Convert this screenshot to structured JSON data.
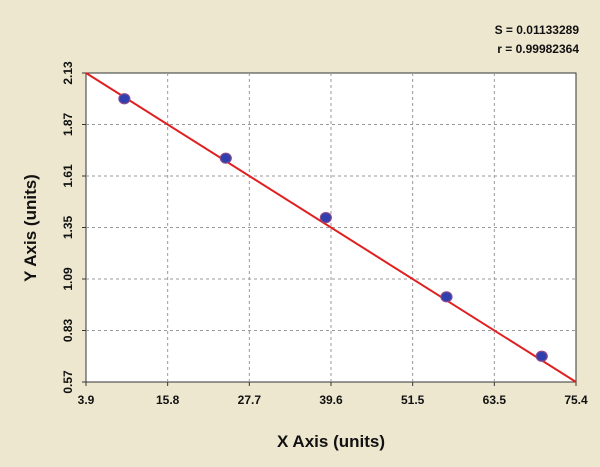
{
  "chart_data": {
    "type": "scatter",
    "title": "",
    "xlabel": "X Axis (units)",
    "ylabel": "Y Axis (units)",
    "xlim": [
      3.9,
      75.4
    ],
    "ylim": [
      0.57,
      2.13
    ],
    "x_ticks": [
      "3.9",
      "15.8",
      "27.7",
      "39.6",
      "51.5",
      "63.5",
      "75.4"
    ],
    "y_ticks": [
      "0.57",
      "0.83",
      "1.09",
      "1.35",
      "1.61",
      "1.87",
      "2.13"
    ],
    "grid": true,
    "series": [
      {
        "points": [
          {
            "x": 9.5,
            "y": 2.0
          },
          {
            "x": 24.3,
            "y": 1.7
          },
          {
            "x": 38.9,
            "y": 1.4
          },
          {
            "x": 56.5,
            "y": 1.0
          },
          {
            "x": 70.4,
            "y": 0.7
          }
        ],
        "color": "#2f3fb0"
      }
    ],
    "fit_line": {
      "from": {
        "x": 3.9,
        "y": 2.13
      },
      "to": {
        "x": 75.4,
        "y": 0.57
      },
      "color": "#e02020"
    },
    "annotations": {
      "s": "S = 0.01133289",
      "r": "r = 0.99982364"
    }
  }
}
